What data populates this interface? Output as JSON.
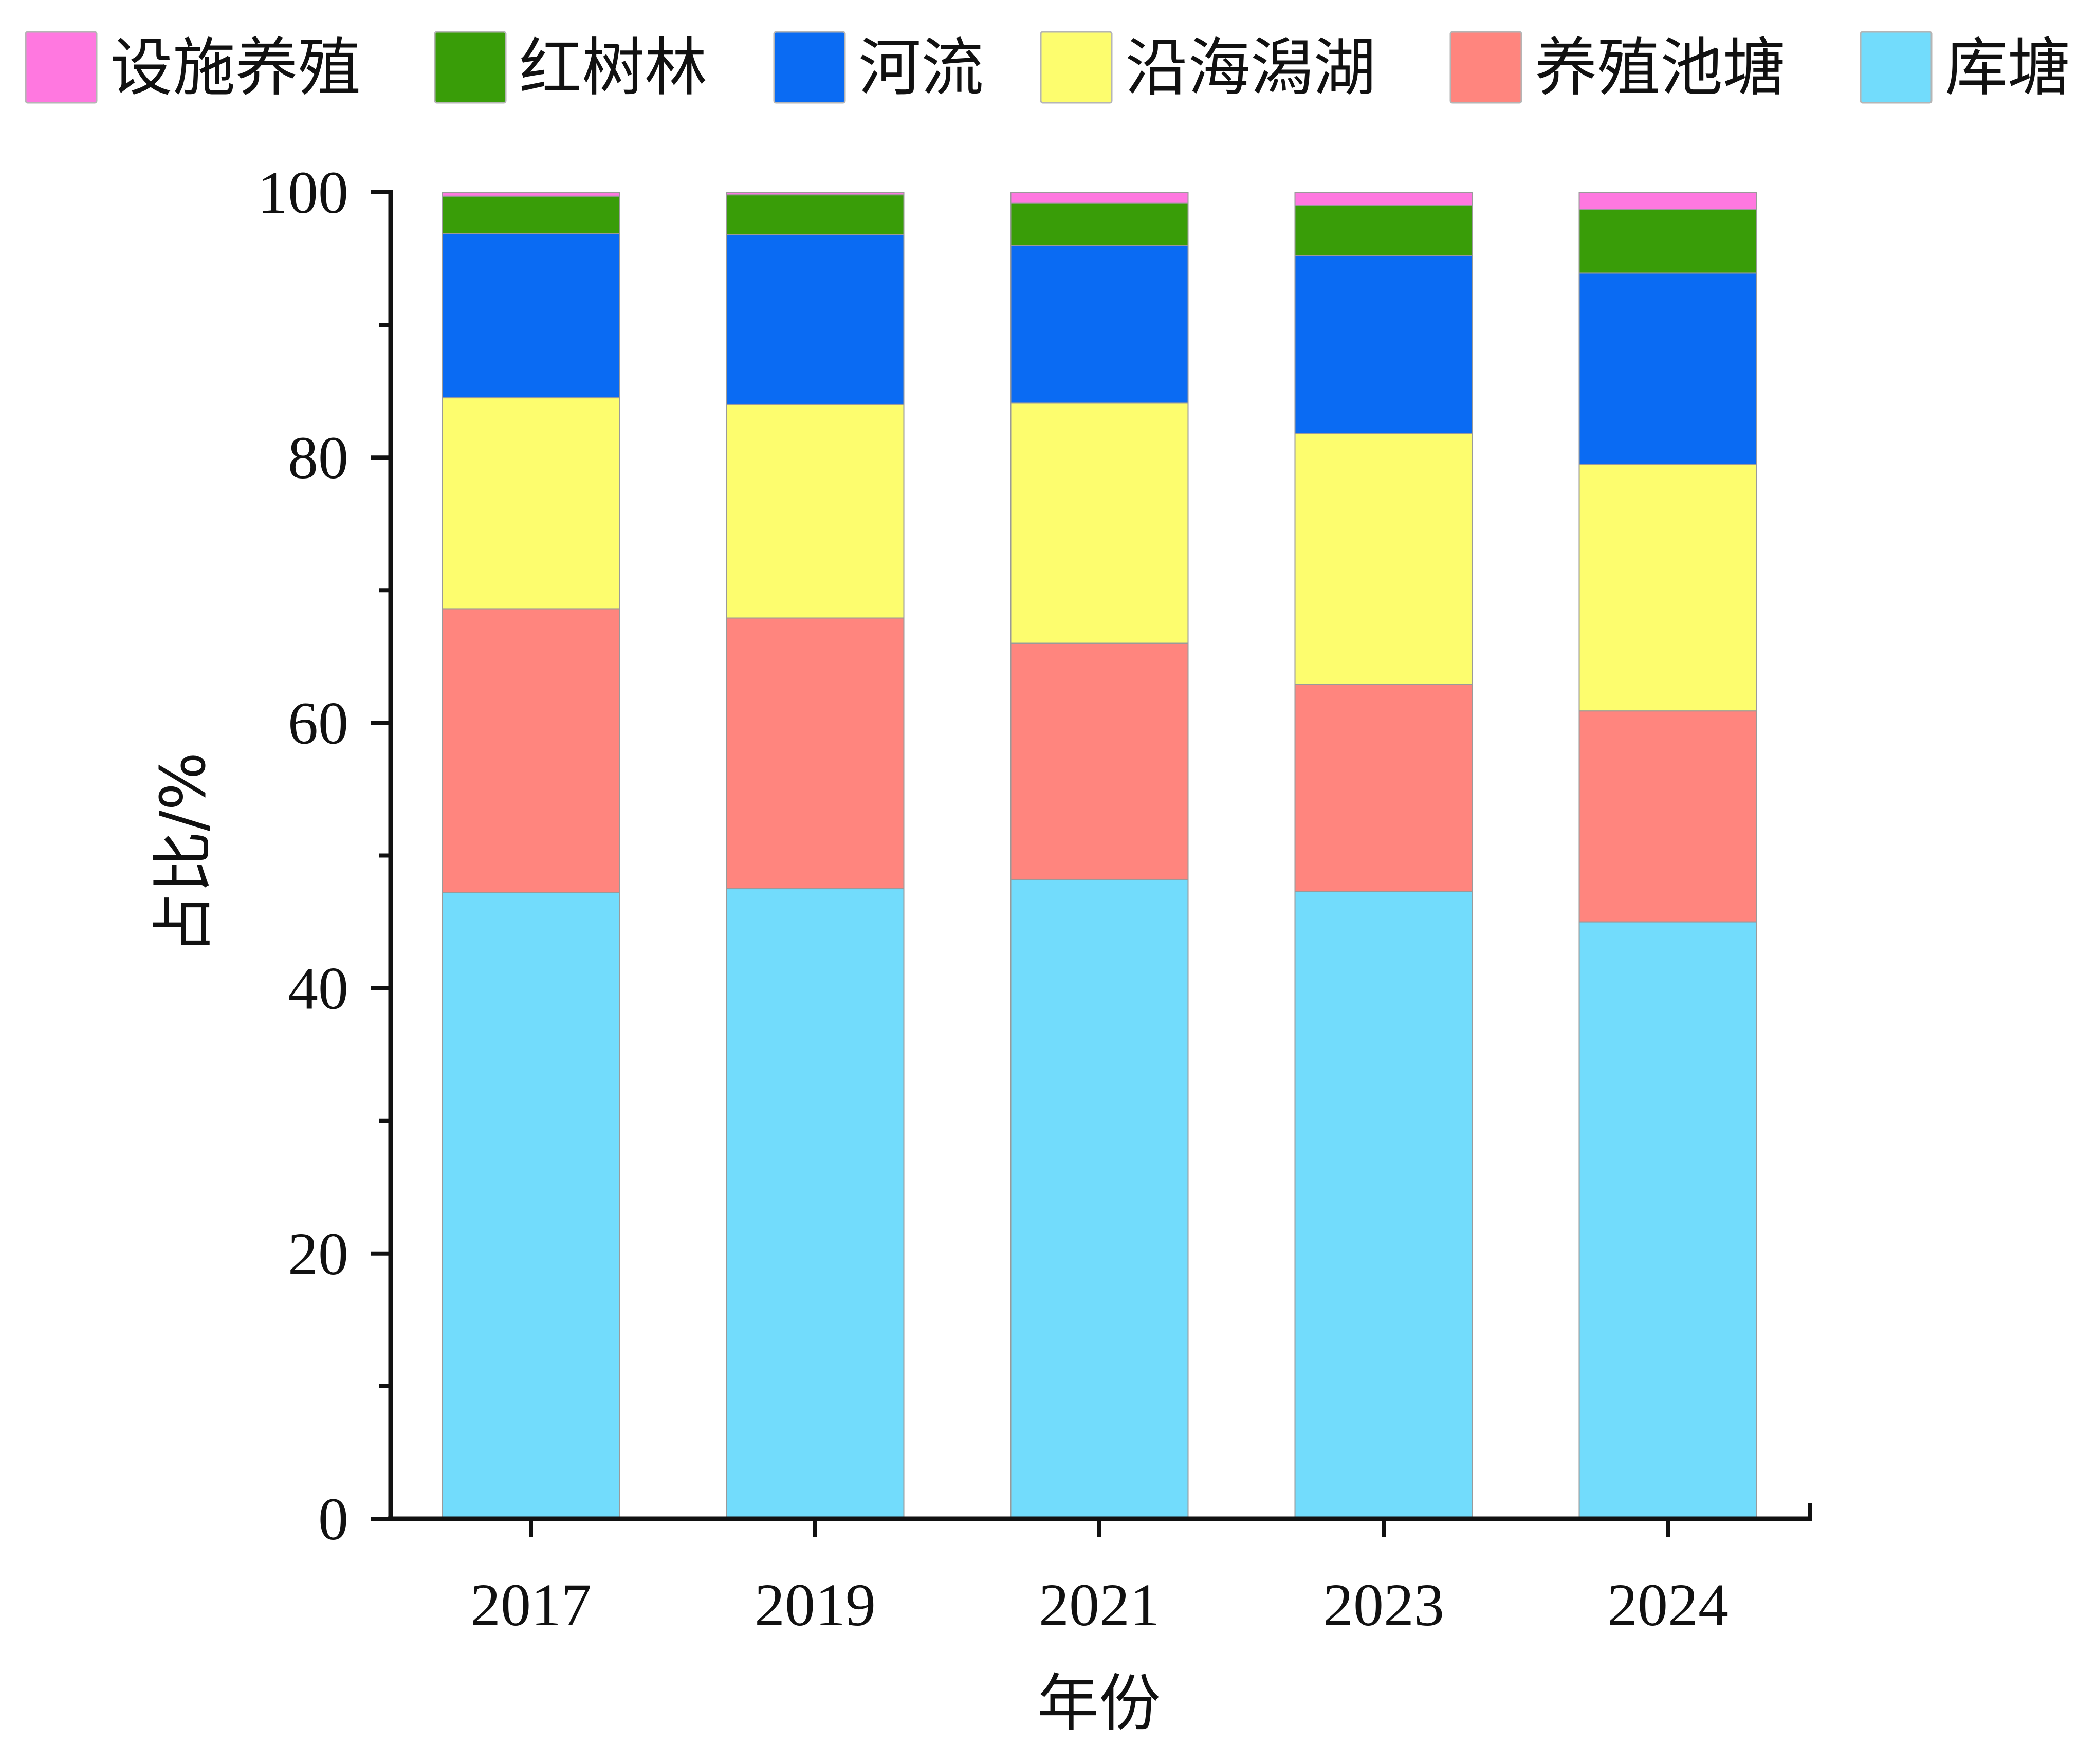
{
  "chart_data": {
    "type": "bar",
    "stacked": true,
    "title": "",
    "xlabel": "年份",
    "ylabel": "占比/%",
    "ylim": [
      0,
      100
    ],
    "yticks": [
      "0",
      "20",
      "40",
      "60",
      "80",
      "100"
    ],
    "categories": [
      "2017",
      "2019",
      "2021",
      "2023",
      "2024"
    ],
    "legend_position": "top",
    "series": [
      {
        "name": "库塘",
        "color": "#72DCFC",
        "values": [
          47.2,
          47.5,
          48.2,
          47.3,
          45.0
        ]
      },
      {
        "name": "养殖池塘",
        "color": "#FF857E",
        "values": [
          21.4,
          20.4,
          17.8,
          15.6,
          15.9
        ]
      },
      {
        "name": "沿海潟湖",
        "color": "#FDFD6E",
        "values": [
          15.9,
          16.1,
          18.1,
          18.9,
          18.6
        ]
      },
      {
        "name": "河流",
        "color": "#0A6BF3",
        "values": [
          12.4,
          12.8,
          11.9,
          13.4,
          14.4
        ]
      },
      {
        "name": "红树林",
        "color": "#399D08",
        "values": [
          2.8,
          3.0,
          3.2,
          3.8,
          4.8
        ]
      },
      {
        "name": "设施养殖",
        "color": "#FF78E0",
        "values": [
          0.3,
          0.2,
          0.8,
          1.0,
          1.3
        ]
      }
    ],
    "legend_order": [
      "设施养殖",
      "红树林",
      "河流",
      "沿海潟湖",
      "养殖池塘",
      "库塘"
    ]
  }
}
